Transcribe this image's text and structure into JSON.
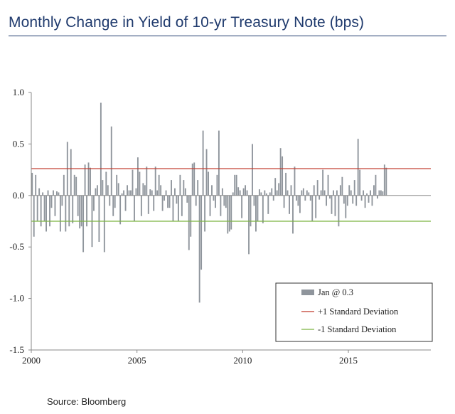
{
  "title": "Monthly Change in Yield of 10-yr Treasury Note (bps)",
  "source": "Source: Bloomberg",
  "colors": {
    "bars": "#8f959c",
    "plus_sd": "#c0392b",
    "minus_sd": "#7cb342",
    "title": "#1f3a6d",
    "axis": "#8a8a8a"
  },
  "chart_data": {
    "type": "bar",
    "title": "Monthly Change in Yield of 10-yr Treasury Note (bps)",
    "xlabel": "",
    "ylabel": "",
    "ylim": [
      -1.5,
      1.0
    ],
    "xlim": [
      2000,
      2018.9
    ],
    "yticks": [
      "1.0",
      "0.5",
      "0.0",
      "-0.5",
      "-1.0",
      "-1.5"
    ],
    "ytick_values": [
      1.0,
      0.5,
      0.0,
      -0.5,
      -1.0,
      -1.5
    ],
    "xticks": [
      "2000",
      "2005",
      "2010",
      "2015"
    ],
    "xtick_values": [
      2000,
      2005,
      2010,
      2015
    ],
    "start_year": 2000,
    "reference_lines": [
      {
        "name": "+1 Standard Deviation",
        "value": 0.26
      },
      {
        "name": "-1 Standard Deviation",
        "value": -0.25
      }
    ],
    "legend": {
      "placement": "bottom-right",
      "entries": [
        "Jan @ 0.3",
        "+1 Standard Deviation",
        "-1 Standard Deviation"
      ]
    },
    "series": [
      {
        "name": "Jan @ 0.3",
        "values": [
          0.22,
          -0.4,
          0.2,
          -0.25,
          0.07,
          -0.3,
          0.03,
          -0.25,
          -0.35,
          0.05,
          -0.3,
          -0.12,
          0.05,
          -0.2,
          0.04,
          0.03,
          -0.35,
          -0.1,
          0.2,
          -0.35,
          0.52,
          -0.3,
          0.45,
          -0.27,
          0.2,
          0.18,
          -0.2,
          -0.32,
          -0.3,
          -0.55,
          0.3,
          -0.3,
          0.32,
          0.27,
          -0.5,
          -0.15,
          0.07,
          0.1,
          -0.45,
          0.9,
          0.15,
          -0.55,
          0.23,
          0.1,
          -0.1,
          0.67,
          -0.2,
          -0.12,
          0.2,
          0.12,
          -0.28,
          0.02,
          0.05,
          -0.15,
          0.1,
          0.05,
          0.05,
          0.25,
          -0.25,
          0.07,
          0.37,
          0.23,
          -0.2,
          0.12,
          0.1,
          0.28,
          -0.18,
          0.06,
          0.05,
          -0.15,
          0.28,
          0.05,
          0.2,
          0.1,
          -0.15,
          -0.05,
          0.05,
          -0.12,
          -0.12,
          0.15,
          -0.25,
          0.07,
          -0.08,
          -0.25,
          0.2,
          -0.2,
          0.15,
          0.07,
          -0.07,
          -0.53,
          -0.4,
          0.31,
          0.32,
          -0.1,
          0.15,
          -1.04,
          -0.72,
          0.63,
          -0.35,
          0.45,
          0.23,
          -0.2,
          0.1,
          -0.05,
          -0.12,
          0.2,
          0.63,
          -0.2,
          0.07,
          -0.1,
          -0.12,
          -0.37,
          -0.35,
          -0.33,
          0.03,
          0.2,
          0.2,
          0.08,
          0.05,
          -0.22,
          0.07,
          0.1,
          0.05,
          -0.57,
          -0.3,
          0.5,
          -0.1,
          -0.35,
          -0.25,
          0.06,
          0.03,
          -0.27,
          0.05,
          0.02,
          -0.18,
          0.03,
          0.07,
          -0.05,
          0.17,
          0.05,
          0.12,
          0.46,
          0.38,
          -0.12,
          0.22,
          0.05,
          -0.18,
          0.1,
          -0.37,
          0.28,
          -0.05,
          -0.1,
          -0.17,
          0.05,
          0.07,
          -0.05,
          0.05,
          0.03,
          -0.05,
          -0.25,
          0.1,
          -0.22,
          0.15,
          -0.04,
          0.05,
          0.25,
          0.05,
          -0.1,
          0.2,
          -0.03,
          -0.18,
          0.05,
          -0.2,
          0.05,
          -0.3,
          0.1,
          0.18,
          -0.08,
          -0.22,
          -0.1,
          0.1,
          0.05,
          -0.08,
          0.15,
          -0.1,
          0.55,
          0.25,
          -0.05,
          0.05,
          -0.12,
          0.02,
          -0.07,
          0.05,
          -0.1,
          0.1,
          0.2,
          -0.03,
          0.05,
          0.05,
          0.04,
          0.3,
          0.27
        ]
      }
    ]
  }
}
